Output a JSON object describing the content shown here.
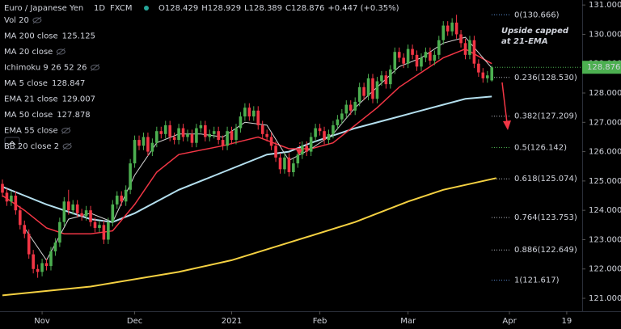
{
  "header": {
    "symbol": "Euro / Japanese Yen",
    "interval": "1D",
    "source": "FXCM",
    "ohlc": [
      "O128.429",
      "H128.929",
      "L128.389",
      "C128.876",
      "+0.447 (+0.35%)"
    ]
  },
  "indicators": [
    {
      "name": "Vol 20",
      "muted": true
    },
    {
      "name": "MA 200 close",
      "value": "125.125",
      "color": "#f5d142"
    },
    {
      "name": "MA 20 close",
      "muted": true
    },
    {
      "name": "Ichimoku 9 26 52 26",
      "muted": true
    },
    {
      "name": "MA 5 close",
      "value": "128.847",
      "color": "#d6d6d6"
    },
    {
      "name": "EMA 21 close",
      "value": "129.007",
      "color": "#f23645"
    },
    {
      "name": "MA 50 close",
      "value": "127.878",
      "color": "#b4dfee"
    },
    {
      "name": "EMA 55 close",
      "muted": true
    },
    {
      "name": "BB 20 close 2",
      "muted": true
    }
  ],
  "chart_data": {
    "type": "candlestick",
    "up_color": "#4caf50",
    "down_color": "#f23645",
    "xlim": [
      -0.55,
      131.5
    ],
    "ylim": [
      120.56,
      131.17
    ],
    "xticks": [
      {
        "value": 9,
        "label": "Nov"
      },
      {
        "value": 30,
        "label": "Dec"
      },
      {
        "value": 52,
        "label": "2021"
      },
      {
        "value": 72,
        "label": "Feb"
      },
      {
        "value": 92,
        "label": "Mar"
      },
      {
        "value": 115,
        "label": "Apr"
      },
      {
        "value": 128,
        "label": "19"
      }
    ],
    "yticks": [
      {
        "value": 121,
        "label": "121.000"
      },
      {
        "value": 122,
        "label": "122.000"
      },
      {
        "value": 123,
        "label": "123.000"
      },
      {
        "value": 124,
        "label": "124.000"
      },
      {
        "value": 125,
        "label": "125.000"
      },
      {
        "value": 126,
        "label": "126.000"
      },
      {
        "value": 127,
        "label": "127.000"
      },
      {
        "value": 128,
        "label": "128.000"
      },
      {
        "value": 129,
        "label": "129.000"
      },
      {
        "value": 130,
        "label": "130.000"
      },
      {
        "value": 131,
        "label": "131.000"
      }
    ],
    "last_price": 128.876,
    "last_price_color": "#4caf50",
    "annotation": [
      "Upside capped",
      "at 21-EMA"
    ],
    "candles": [
      [
        124.9,
        125.05,
        124.45,
        124.6
      ],
      [
        124.6,
        124.75,
        124.15,
        124.3
      ],
      [
        124.3,
        124.65,
        124.15,
        124.5
      ],
      [
        124.5,
        124.65,
        123.85,
        124.0
      ],
      [
        124.0,
        124.15,
        123.35,
        123.5
      ],
      [
        123.5,
        123.65,
        123.05,
        123.2
      ],
      [
        123.2,
        123.35,
        122.35,
        122.5
      ],
      [
        122.5,
        122.65,
        121.85,
        122.0
      ],
      [
        122.0,
        122.15,
        121.7,
        121.9
      ],
      [
        121.9,
        122.35,
        121.75,
        122.2
      ],
      [
        122.2,
        122.35,
        121.95,
        122.1
      ],
      [
        122.1,
        122.75,
        121.95,
        122.6
      ],
      [
        122.6,
        123.05,
        122.45,
        122.9
      ],
      [
        122.9,
        123.75,
        122.75,
        123.6
      ],
      [
        123.6,
        124.45,
        123.45,
        124.3
      ],
      [
        124.3,
        124.7,
        123.85,
        124.0
      ],
      [
        124.0,
        124.35,
        123.85,
        124.2
      ],
      [
        124.2,
        124.35,
        123.75,
        123.9
      ],
      [
        123.9,
        124.05,
        123.65,
        123.8
      ],
      [
        123.8,
        124.15,
        123.65,
        124.0
      ],
      [
        124.0,
        124.15,
        123.45,
        123.6
      ],
      [
        123.6,
        123.75,
        123.25,
        123.4
      ],
      [
        123.4,
        123.65,
        123.25,
        123.5
      ],
      [
        123.5,
        123.65,
        122.85,
        123.0
      ],
      [
        123.0,
        123.75,
        122.85,
        123.6
      ],
      [
        123.6,
        124.35,
        123.45,
        124.2
      ],
      [
        124.2,
        124.65,
        124.05,
        124.5
      ],
      [
        124.5,
        124.65,
        124.15,
        124.3
      ],
      [
        124.3,
        124.85,
        124.15,
        124.7
      ],
      [
        124.7,
        125.75,
        124.55,
        125.6
      ],
      [
        125.6,
        126.55,
        125.45,
        126.4
      ],
      [
        126.4,
        126.55,
        126.05,
        126.2
      ],
      [
        126.2,
        126.65,
        126.05,
        126.5
      ],
      [
        126.5,
        126.65,
        125.85,
        126.0
      ],
      [
        126.0,
        126.45,
        125.85,
        126.3
      ],
      [
        126.3,
        126.85,
        126.15,
        126.7
      ],
      [
        126.7,
        126.85,
        126.45,
        126.6
      ],
      [
        126.6,
        127.05,
        126.45,
        126.9
      ],
      [
        126.9,
        127.05,
        126.35,
        126.5
      ],
      [
        126.5,
        126.65,
        126.25,
        126.4
      ],
      [
        126.4,
        126.95,
        126.25,
        126.8
      ],
      [
        126.8,
        126.95,
        126.35,
        126.5
      ],
      [
        126.5,
        126.75,
        126.35,
        126.6
      ],
      [
        126.6,
        126.75,
        126.15,
        126.3
      ],
      [
        126.3,
        126.95,
        126.15,
        126.8
      ],
      [
        126.8,
        127.05,
        126.65,
        126.9
      ],
      [
        126.9,
        127.05,
        126.35,
        126.5
      ],
      [
        126.5,
        126.75,
        126.35,
        126.6
      ],
      [
        126.6,
        126.85,
        126.45,
        126.7
      ],
      [
        126.7,
        126.85,
        126.25,
        126.4
      ],
      [
        126.4,
        126.55,
        126.05,
        126.2
      ],
      [
        126.2,
        126.85,
        126.05,
        126.7
      ],
      [
        126.7,
        126.85,
        126.25,
        126.4
      ],
      [
        126.4,
        126.95,
        126.25,
        126.8
      ],
      [
        126.8,
        127.35,
        126.65,
        127.2
      ],
      [
        127.2,
        127.65,
        127.05,
        127.5
      ],
      [
        127.5,
        127.65,
        127.05,
        127.2
      ],
      [
        127.2,
        127.55,
        127.05,
        127.4
      ],
      [
        127.4,
        127.55,
        126.75,
        126.9
      ],
      [
        126.9,
        127.05,
        126.45,
        126.6
      ],
      [
        126.6,
        126.75,
        126.35,
        126.5
      ],
      [
        126.5,
        126.65,
        126.05,
        126.2
      ],
      [
        126.2,
        126.35,
        125.65,
        125.8
      ],
      [
        125.8,
        125.95,
        125.25,
        125.4
      ],
      [
        125.4,
        125.95,
        125.25,
        125.8
      ],
      [
        125.8,
        125.95,
        125.15,
        125.3
      ],
      [
        125.3,
        125.75,
        125.15,
        125.6
      ],
      [
        125.6,
        126.05,
        125.45,
        125.9
      ],
      [
        125.9,
        126.35,
        125.75,
        126.2
      ],
      [
        126.2,
        126.35,
        125.85,
        126.0
      ],
      [
        126.0,
        126.65,
        125.85,
        126.5
      ],
      [
        126.5,
        126.95,
        126.35,
        126.8
      ],
      [
        126.8,
        126.95,
        126.55,
        126.7
      ],
      [
        126.7,
        126.85,
        126.25,
        126.4
      ],
      [
        126.4,
        126.75,
        126.25,
        126.6
      ],
      [
        126.6,
        127.05,
        126.45,
        126.9
      ],
      [
        126.9,
        127.25,
        126.75,
        127.1
      ],
      [
        127.1,
        127.45,
        126.95,
        127.3
      ],
      [
        127.3,
        127.75,
        127.15,
        127.6
      ],
      [
        127.6,
        127.75,
        127.25,
        127.4
      ],
      [
        127.4,
        127.85,
        127.25,
        127.7
      ],
      [
        127.7,
        128.35,
        127.55,
        128.2
      ],
      [
        128.2,
        128.35,
        127.75,
        127.9
      ],
      [
        127.9,
        128.65,
        127.75,
        128.5
      ],
      [
        128.5,
        128.65,
        127.65,
        127.8
      ],
      [
        127.8,
        128.55,
        127.65,
        128.4
      ],
      [
        128.4,
        128.75,
        128.25,
        128.6
      ],
      [
        128.6,
        128.75,
        128.15,
        128.3
      ],
      [
        128.3,
        128.95,
        128.15,
        128.8
      ],
      [
        128.8,
        129.55,
        128.65,
        129.4
      ],
      [
        129.4,
        129.55,
        129.05,
        129.2
      ],
      [
        129.2,
        129.35,
        128.85,
        129.0
      ],
      [
        129.0,
        129.65,
        128.85,
        129.5
      ],
      [
        129.5,
        129.65,
        129.15,
        129.3
      ],
      [
        129.3,
        129.45,
        128.75,
        128.9
      ],
      [
        128.9,
        129.35,
        128.75,
        129.2
      ],
      [
        129.2,
        129.55,
        129.05,
        129.4
      ],
      [
        129.4,
        129.55,
        128.95,
        129.1
      ],
      [
        129.1,
        129.45,
        128.95,
        129.3
      ],
      [
        129.3,
        129.95,
        129.15,
        129.8
      ],
      [
        129.8,
        130.45,
        129.65,
        130.3
      ],
      [
        130.3,
        130.45,
        129.95,
        130.1
      ],
      [
        130.1,
        130.55,
        129.95,
        130.4
      ],
      [
        130.4,
        130.666,
        129.85,
        130.0
      ],
      [
        130.0,
        130.15,
        129.55,
        129.7
      ],
      [
        129.7,
        129.85,
        129.15,
        129.3
      ],
      [
        129.3,
        129.95,
        129.15,
        129.8
      ],
      [
        129.8,
        129.95,
        128.85,
        129.0
      ],
      [
        129.0,
        129.15,
        128.55,
        128.7
      ],
      [
        128.7,
        128.85,
        128.35,
        128.5
      ],
      [
        128.5,
        128.75,
        128.35,
        128.6
      ],
      [
        128.429,
        128.929,
        128.389,
        128.876
      ]
    ],
    "series": [
      {
        "name": "MA 200 close",
        "color": "#f5d142",
        "width": 2,
        "x": [
          0,
          20,
          40,
          52,
          65,
          80,
          92,
          100,
          112
        ],
        "values": [
          121.1,
          121.4,
          121.9,
          122.3,
          122.9,
          123.6,
          124.3,
          124.7,
          125.1
        ]
      },
      {
        "name": "MA 50 close",
        "color": "#b4dfee",
        "width": 2,
        "x": [
          0,
          5,
          10,
          20,
          25,
          30,
          40,
          50,
          60,
          65,
          70,
          80,
          90,
          100,
          105,
          111
        ],
        "values": [
          124.8,
          124.5,
          124.2,
          123.7,
          123.6,
          123.9,
          124.7,
          125.3,
          125.9,
          126.0,
          126.3,
          126.8,
          127.2,
          127.6,
          127.8,
          127.88
        ]
      },
      {
        "name": "EMA 21 close",
        "color": "#f23645",
        "width": 1.5,
        "x": [
          0,
          5,
          10,
          14,
          20,
          25,
          30,
          35,
          40,
          50,
          58,
          65,
          70,
          75,
          80,
          85,
          90,
          95,
          100,
          105,
          111
        ],
        "values": [
          124.5,
          124.0,
          123.4,
          123.2,
          123.2,
          123.3,
          124.2,
          125.3,
          125.9,
          126.2,
          126.5,
          126.1,
          126.1,
          126.3,
          126.9,
          127.5,
          128.2,
          128.7,
          129.2,
          129.5,
          129.0
        ]
      },
      {
        "name": "MA 5 close",
        "color": "#d6d6d6",
        "width": 1,
        "x": [
          5,
          10,
          15,
          20,
          25,
          30,
          35,
          40,
          45,
          50,
          55,
          60,
          65,
          70,
          75,
          80,
          85,
          90,
          95,
          100,
          105,
          111
        ],
        "values": [
          123.4,
          122.3,
          123.7,
          123.9,
          123.6,
          125.2,
          126.3,
          126.6,
          126.6,
          126.5,
          127.0,
          126.9,
          125.7,
          126.1,
          126.6,
          127.5,
          128.2,
          128.9,
          129.2,
          129.7,
          129.9,
          128.85
        ]
      }
    ],
    "fib_levels": [
      {
        "label": "0(130.666)",
        "value": 130.666,
        "color": "#5b8fd6"
      },
      {
        "label": "0.236(128.530)",
        "value": 128.53,
        "color": "#b2b5be"
      },
      {
        "label": "0.382(127.209)",
        "value": 127.209,
        "color": "#b2b5be"
      },
      {
        "label": "0.5(126.142)",
        "value": 126.142,
        "color": "#4caf50"
      },
      {
        "label": "0.618(125.074)",
        "value": 125.074,
        "color": "#b2b5be"
      },
      {
        "label": "0.764(123.753)",
        "value": 123.753,
        "color": "#b2b5be"
      },
      {
        "label": "0.886(122.649)",
        "value": 122.649,
        "color": "#b2b5be"
      },
      {
        "label": "1(121.617)",
        "value": 121.617,
        "color": "#5b8fd6"
      }
    ]
  }
}
